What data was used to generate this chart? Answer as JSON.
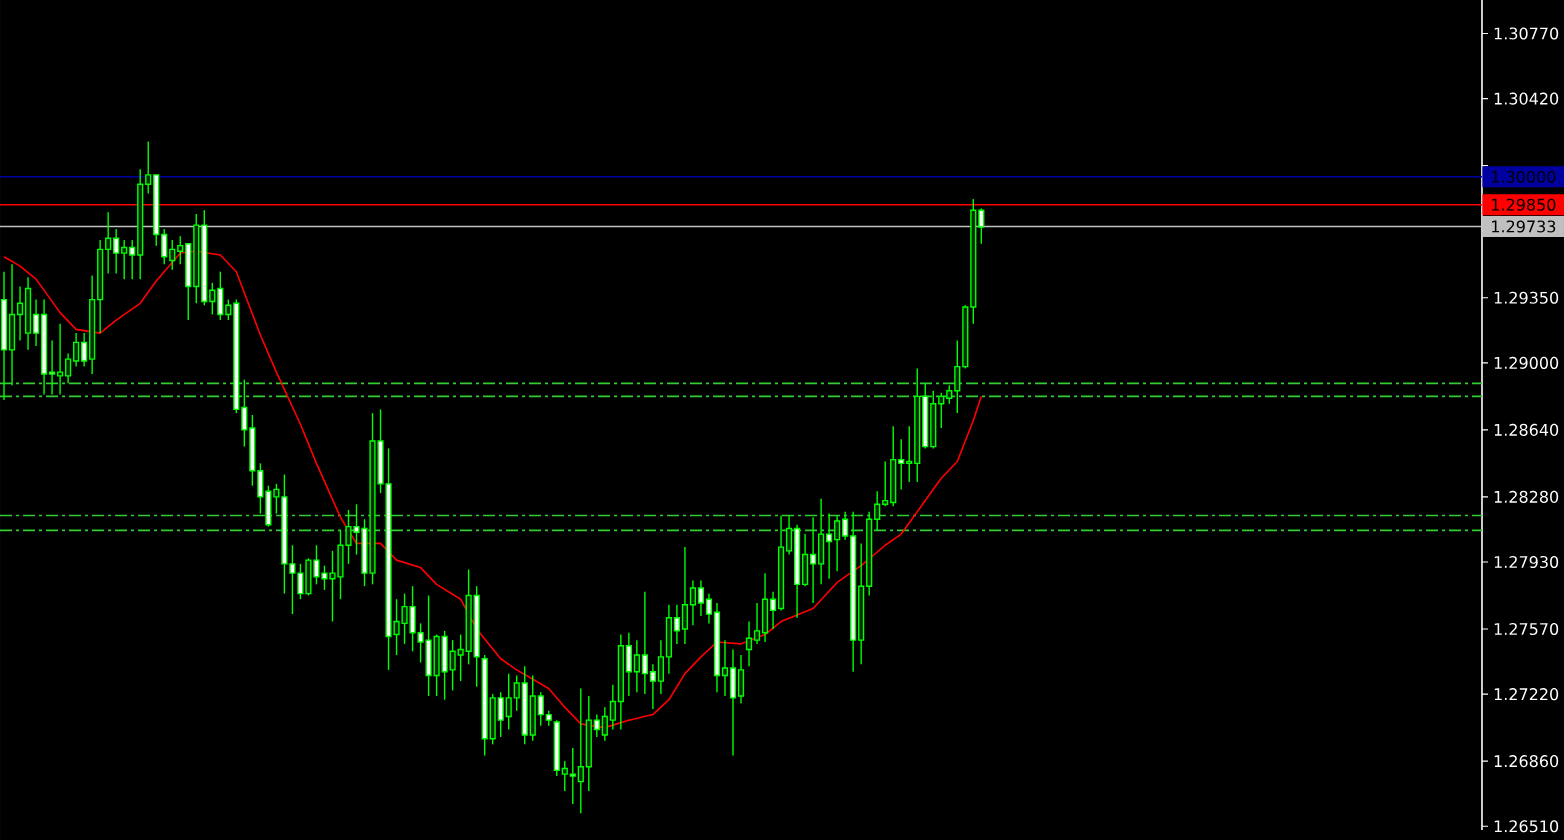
{
  "chart_data": {
    "type": "candlestick",
    "color": "#00ff00",
    "tick_labels": "y",
    "categories": [
      null,
      null,
      null,
      null,
      null,
      null,
      null,
      null,
      null,
      null,
      null,
      null,
      null,
      null,
      null,
      null,
      null,
      null,
      null,
      null,
      null,
      null,
      null,
      null,
      null,
      null,
      null,
      null,
      null,
      null,
      null,
      null,
      null,
      null,
      null,
      null,
      null,
      null,
      null,
      null,
      null,
      null,
      null,
      null,
      null,
      null,
      null,
      null,
      null,
      null,
      null,
      null,
      null,
      null,
      null,
      null,
      null,
      null,
      null,
      null,
      null,
      null,
      null,
      null,
      null,
      null,
      null,
      null,
      null,
      null,
      null,
      null,
      null,
      null,
      null,
      null,
      null,
      null,
      null,
      null,
      null,
      null,
      null,
      null,
      null,
      null,
      null,
      null,
      null,
      null,
      null,
      null,
      null,
      null,
      null,
      null,
      null,
      null,
      null,
      null,
      null,
      null,
      null,
      null,
      null,
      null,
      null,
      null,
      null,
      null,
      null,
      null,
      null,
      null,
      null,
      null,
      null,
      null,
      null,
      null,
      null,
      null,
      null,
      null,
      null,
      null,
      null,
      null,
      null,
      null,
      null,
      null,
      null,
      null,
      null,
      null,
      null,
      null,
      null,
      null,
      null,
      null,
      null,
      null,
      null,
      null,
      null,
      null,
      null,
      null,
      null,
      null,
      null,
      null,
      null,
      null,
      null,
      null,
      null,
      null,
      null,
      null,
      null,
      null,
      null,
      null,
      null,
      null,
      null,
      null,
      null,
      null,
      null,
      null,
      null,
      null,
      null,
      null,
      null,
      null,
      null,
      null,
      null,
      null,
      null
    ],
    "ohlc": [
      [
        1.2934,
        1.2949,
        1.288,
        1.2907
      ],
      [
        1.2907,
        1.2953,
        1.2888,
        1.2926
      ],
      [
        1.2926,
        1.2941,
        1.2912,
        1.2932
      ],
      [
        1.2916,
        1.2946,
        1.2907,
        1.294
      ],
      [
        1.2926,
        1.2934,
        1.2909,
        1.2916
      ],
      [
        1.2926,
        1.2934,
        1.2883,
        1.2894
      ],
      [
        1.2895,
        1.2912,
        1.2883,
        1.2894
      ],
      [
        1.2893,
        1.2921,
        1.2883,
        1.2895
      ],
      [
        1.2893,
        1.2905,
        1.2889,
        1.2902
      ],
      [
        1.2901,
        1.2916,
        1.2898,
        1.2911
      ],
      [
        1.2911,
        1.2916,
        1.2898,
        1.2901
      ],
      [
        1.2902,
        1.2947,
        1.2894,
        1.2934
      ],
      [
        1.2934,
        1.2966,
        1.2916,
        1.2961
      ],
      [
        1.2961,
        1.2981,
        1.2948,
        1.2967
      ],
      [
        1.2967,
        1.2972,
        1.2948,
        1.2959
      ],
      [
        1.2959,
        1.2966,
        1.2945,
        1.2962
      ],
      [
        1.2962,
        1.2966,
        1.2945,
        1.2958
      ],
      [
        1.2958,
        1.3004,
        1.2945,
        1.2996
      ],
      [
        1.2996,
        1.3019,
        1.2991,
        1.3001
      ],
      [
        1.3001,
        1.3001,
        1.2963,
        1.2969
      ],
      [
        1.2969,
        1.2972,
        1.2953,
        1.2957
      ],
      [
        1.2955,
        1.2966,
        1.295,
        1.2961
      ],
      [
        1.296,
        1.2968,
        1.2953,
        1.2963
      ],
      [
        1.2964,
        1.2964,
        1.2923,
        1.2941
      ],
      [
        1.2941,
        1.298,
        1.2932,
        1.2974
      ],
      [
        1.2974,
        1.2982,
        1.2931,
        1.2933
      ],
      [
        1.2933,
        1.2943,
        1.2926,
        1.2939
      ],
      [
        1.294,
        1.2949,
        1.2923,
        1.2926
      ],
      [
        1.2926,
        1.2934,
        1.2923,
        1.2931
      ],
      [
        1.2932,
        1.2934,
        1.2873,
        1.2875
      ],
      [
        1.2876,
        1.2891,
        1.2855,
        1.2864
      ],
      [
        1.2865,
        1.2872,
        1.2834,
        1.2842
      ],
      [
        1.2842,
        1.2846,
        1.2819,
        1.2828
      ],
      [
        1.2831,
        1.2834,
        1.2812,
        1.2813
      ],
      [
        1.2828,
        1.2835,
        1.2819,
        1.2832
      ],
      [
        1.2828,
        1.284,
        1.2776,
        1.2792
      ],
      [
        1.2792,
        1.2802,
        1.2765,
        1.2787
      ],
      [
        1.2787,
        1.2792,
        1.2773,
        1.2776
      ],
      [
        1.2776,
        1.2795,
        1.2775,
        1.2794
      ],
      [
        1.2794,
        1.2802,
        1.2781,
        1.2785
      ],
      [
        1.2787,
        1.2791,
        1.2778,
        1.2784
      ],
      [
        1.2784,
        1.2799,
        1.2761,
        1.2787
      ],
      [
        1.2785,
        1.281,
        1.2773,
        1.2802
      ],
      [
        1.2802,
        1.2821,
        1.2792,
        1.2812
      ],
      [
        1.2812,
        1.2824,
        1.2797,
        1.2809
      ],
      [
        1.2811,
        1.2816,
        1.278,
        1.2787
      ],
      [
        1.2787,
        1.2873,
        1.2781,
        1.2858
      ],
      [
        1.2858,
        1.2875,
        1.283,
        1.2835
      ],
      [
        1.2835,
        1.2854,
        1.2735,
        1.2753
      ],
      [
        1.2754,
        1.2773,
        1.2743,
        1.2761
      ],
      [
        1.276,
        1.2776,
        1.2749,
        1.2769
      ],
      [
        1.2769,
        1.278,
        1.2745,
        1.2755
      ],
      [
        1.2755,
        1.276,
        1.2739,
        1.275
      ],
      [
        1.2751,
        1.2775,
        1.2721,
        1.2732
      ],
      [
        1.2732,
        1.2754,
        1.2721,
        1.2753
      ],
      [
        1.2753,
        1.2756,
        1.2719,
        1.2734
      ],
      [
        1.2735,
        1.2751,
        1.2724,
        1.2745
      ],
      [
        1.2743,
        1.2754,
        1.2729,
        1.2746
      ],
      [
        1.2745,
        1.2789,
        1.2738,
        1.2775
      ],
      [
        1.2775,
        1.278,
        1.2726,
        1.2742
      ],
      [
        1.2741,
        1.2743,
        1.2689,
        1.2698
      ],
      [
        1.2698,
        1.2722,
        1.2695,
        1.272
      ],
      [
        1.272,
        1.2723,
        1.2699,
        1.2708
      ],
      [
        1.271,
        1.2733,
        1.2703,
        1.272
      ],
      [
        1.272,
        1.2732,
        1.2713,
        1.2728
      ],
      [
        1.2728,
        1.2737,
        1.2695,
        1.27
      ],
      [
        1.27,
        1.2732,
        1.2697,
        1.2721
      ],
      [
        1.2721,
        1.2723,
        1.2705,
        1.2711
      ],
      [
        1.2711,
        1.2713,
        1.2705,
        1.2708
      ],
      [
        1.2707,
        1.2708,
        1.2678,
        1.2681
      ],
      [
        1.2679,
        1.2686,
        1.267,
        1.2682
      ],
      [
        1.2679,
        1.2693,
        1.2663,
        1.2678
      ],
      [
        1.2675,
        1.2725,
        1.2658,
        1.2683
      ],
      [
        1.2683,
        1.2721,
        1.267,
        1.2708
      ],
      [
        1.2708,
        1.2711,
        1.2699,
        1.2703
      ],
      [
        1.27,
        1.2715,
        1.2697,
        1.271
      ],
      [
        1.2708,
        1.2727,
        1.2703,
        1.2718
      ],
      [
        1.2718,
        1.2754,
        1.2703,
        1.2748
      ],
      [
        1.2748,
        1.2755,
        1.2721,
        1.2734
      ],
      [
        1.2734,
        1.2751,
        1.2723,
        1.2743
      ],
      [
        1.2743,
        1.2777,
        1.2722,
        1.2733
      ],
      [
        1.2734,
        1.2738,
        1.2714,
        1.2729
      ],
      [
        1.2729,
        1.2751,
        1.2722,
        1.2742
      ],
      [
        1.2742,
        1.277,
        1.2733,
        1.2763
      ],
      [
        1.2763,
        1.277,
        1.2749,
        1.2756
      ],
      [
        1.2757,
        1.2801,
        1.2749,
        1.277
      ],
      [
        1.277,
        1.2783,
        1.2759,
        1.2779
      ],
      [
        1.2779,
        1.2783,
        1.2764,
        1.2771
      ],
      [
        1.2773,
        1.2776,
        1.276,
        1.2765
      ],
      [
        1.2766,
        1.2771,
        1.2723,
        1.2732
      ],
      [
        1.2732,
        1.2751,
        1.2721,
        1.2736
      ],
      [
        1.2736,
        1.2746,
        1.2689,
        1.272
      ],
      [
        1.2721,
        1.2743,
        1.2717,
        1.2735
      ],
      [
        1.2746,
        1.2761,
        1.2737,
        1.2752
      ],
      [
        1.2751,
        1.2771,
        1.2749,
        1.2756
      ],
      [
        1.2755,
        1.2787,
        1.275,
        1.2773
      ],
      [
        1.2773,
        1.2777,
        1.2757,
        1.2767
      ],
      [
        1.2768,
        1.2818,
        1.2767,
        1.2801
      ],
      [
        1.2799,
        1.2818,
        1.2797,
        1.2811
      ],
      [
        1.2811,
        1.2813,
        1.2763,
        1.2781
      ],
      [
        1.2781,
        1.2808,
        1.278,
        1.2797
      ],
      [
        1.2797,
        1.2817,
        1.2771,
        1.2792
      ],
      [
        1.2792,
        1.2827,
        1.2781,
        1.2808
      ],
      [
        1.2808,
        1.2819,
        1.2784,
        1.2804
      ],
      [
        1.2805,
        1.2818,
        1.2788,
        1.2815
      ],
      [
        1.2816,
        1.282,
        1.2805,
        1.2807
      ],
      [
        1.2807,
        1.282,
        1.2734,
        1.2751
      ],
      [
        1.2751,
        1.2803,
        1.2738,
        1.278
      ],
      [
        1.278,
        1.282,
        1.2775,
        1.2816
      ],
      [
        1.2816,
        1.2831,
        1.281,
        1.2824
      ],
      [
        1.2824,
        1.2847,
        1.2823,
        1.2826
      ],
      [
        1.2825,
        1.2866,
        1.2823,
        1.2848
      ],
      [
        1.2848,
        1.2859,
        1.2832,
        1.2846
      ],
      [
        1.2846,
        1.2866,
        1.2836,
        1.2847
      ],
      [
        1.2846,
        1.2897,
        1.2836,
        1.2882
      ],
      [
        1.2882,
        1.2889,
        1.2854,
        1.2855
      ],
      [
        1.2855,
        1.2885,
        1.2854,
        1.2878
      ],
      [
        1.2878,
        1.2884,
        1.2865,
        1.2882
      ],
      [
        1.2881,
        1.2888,
        1.2878,
        1.2885
      ],
      [
        1.2885,
        1.2912,
        1.2873,
        1.2898
      ],
      [
        1.2898,
        1.2931,
        1.2897,
        1.293
      ],
      [
        1.293,
        1.2988,
        1.2921,
        1.2982
      ],
      [
        1.2982,
        1.2983,
        1.2964,
        1.2973
      ],
      null,
      null,
      null,
      null,
      null,
      null,
      null,
      null,
      null,
      null,
      null,
      null,
      null,
      null,
      null,
      null,
      null,
      null,
      null,
      null,
      null,
      null,
      null,
      null,
      null,
      null,
      null,
      null,
      null,
      null,
      null,
      null,
      null,
      null,
      null,
      null,
      null,
      null,
      null,
      null,
      null,
      null,
      null,
      null,
      null,
      null,
      null,
      null,
      null,
      null,
      null,
      null,
      null,
      null,
      null,
      null,
      null,
      null,
      null,
      null,
      null,
      null
    ],
    "series": [
      {
        "type": "line",
        "color": "#ff0000",
        "values": [
          1.2957,
          null,
          1.2952,
          null,
          1.2945,
          null,
          null,
          1.2927,
          null,
          1.2918,
          null,
          null,
          1.2916,
          null,
          1.2923,
          null,
          null,
          1.2932,
          null,
          1.2944,
          null,
          null,
          1.2959,
          null,
          1.296,
          null,
          null,
          1.2958,
          null,
          1.2949,
          null,
          null,
          1.2915,
          null,
          1.2895,
          null,
          null,
          1.2867,
          null,
          1.2846,
          null,
          null,
          1.2817,
          null,
          1.2803,
          null,
          null,
          1.2803,
          null,
          1.2794,
          null,
          null,
          1.279,
          null,
          1.2781,
          null,
          null,
          1.2773,
          null,
          1.2757,
          null,
          null,
          1.2741,
          null,
          1.2735,
          null,
          null,
          null,
          1.2725,
          null,
          1.2715,
          null,
          1.2706,
          null,
          null,
          1.2704,
          null,
          null,
          1.2708,
          null,
          null,
          1.2711,
          null,
          1.2719,
          null,
          1.2733,
          null,
          1.2742,
          null,
          1.275,
          null,
          null,
          1.2749,
          null,
          null,
          1.2754,
          null,
          1.2761,
          null,
          null,
          null,
          1.2768,
          null,
          null,
          1.2782,
          null,
          null,
          1.2791,
          null,
          null,
          1.2802,
          null,
          1.2808,
          null,
          null,
          1.2826,
          null,
          1.2838,
          null,
          1.2847,
          null,
          1.2869,
          1.2882,
          null,
          null,
          null,
          null,
          null,
          null,
          null,
          null,
          null,
          null,
          null,
          null,
          null,
          null,
          null,
          null,
          null,
          null,
          null,
          null,
          null,
          null,
          null,
          null,
          null,
          null,
          null,
          null,
          null,
          null,
          null,
          null,
          null,
          null,
          null,
          null,
          null,
          null,
          null,
          null,
          null,
          null,
          null,
          null,
          null,
          null,
          null,
          null,
          null,
          null,
          null,
          null,
          null,
          null,
          null,
          null,
          null,
          null,
          null,
          null,
          null,
          null
        ]
      }
    ],
    "ylim": [
      1.2649,
      1.3095
    ],
    "yticks": [
      {
        "value": 1.3077,
        "label": "1.30770"
      },
      {
        "value": 1.3042,
        "label": "1.30420"
      },
      {
        "value": 1.3006,
        "label": null
      },
      {
        "value": 1.2971,
        "label": null
      },
      {
        "value": 1.2935,
        "label": "1.29350"
      },
      {
        "value": 1.29,
        "label": "1.29000"
      },
      {
        "value": 1.2864,
        "label": "1.28640"
      },
      {
        "value": 1.2828,
        "label": "1.28280"
      },
      {
        "value": 1.2793,
        "label": "1.27930"
      },
      {
        "value": 1.2757,
        "label": "1.27570"
      },
      {
        "value": 1.2722,
        "label": "1.27220"
      },
      {
        "value": 1.2686,
        "label": "1.26860"
      },
      {
        "value": 1.2651,
        "label": "1.26510"
      }
    ],
    "ref_lines": [
      {
        "axis": "y",
        "value": 1.3,
        "label": "1.30000",
        "color": "#0000a0"
      },
      {
        "axis": "y",
        "value": 1.2985,
        "label": "1.29850",
        "color": "#ff0000"
      },
      {
        "axis": "y",
        "value": 1.29733,
        "label": "1.29733",
        "color": "#c0c0c0"
      },
      {
        "axis": "y",
        "value": 1.2889,
        "color": "#32cd32",
        "line_style": "dashdot"
      },
      {
        "axis": "y",
        "value": 1.2882,
        "color": "#32cd32",
        "line_style": "dashdot"
      },
      {
        "axis": "y",
        "value": 1.2818,
        "color": "#32cd32",
        "line_style": "dashdot"
      },
      {
        "axis": "y",
        "value": 1.281,
        "color": "#32cd32",
        "line_style": "dashdot"
      }
    ]
  }
}
